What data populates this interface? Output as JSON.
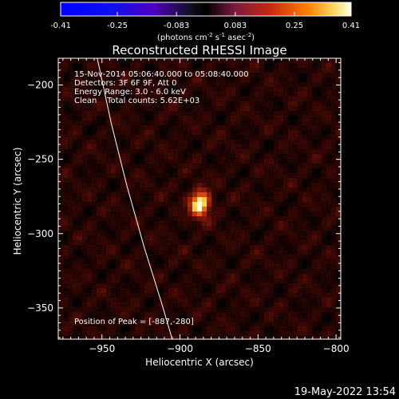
{
  "colorbar": {
    "ticks": [
      "-0.41",
      "-0.25",
      "-0.083",
      "0.083",
      "0.25",
      "0.41"
    ],
    "range": [
      -0.41,
      0.41
    ],
    "units": "(photons cm",
    "units_sup1": "-2",
    "units_mid": " s",
    "units_sup2": "-1",
    "units_end": " asec",
    "units_sup3": "-2",
    "units_close": ")"
  },
  "info": {
    "line1": "15-Nov-2014 05:06:40.000 to 05:08:40.000",
    "line2": "Detectors: 3F 6F 9F, Att 0",
    "line3": "Energy Range: 3.0 - 6.0 keV",
    "line4": "Clean    Total counts: 5.62E+03",
    "peak": "Position of Peak = [-887,-280]"
  },
  "timestamp": "19-May-2022 13:54",
  "colors": {
    "background": "#000000",
    "axes": "#ffffff",
    "limb": "#ffffff"
  },
  "chart_data": {
    "type": "heatmap",
    "title": "Reconstructed RHESSI Image",
    "xlabel": "Heliocentric X (arcsec)",
    "ylabel": "Heliocentric Y (arcsec)",
    "xlim": [
      -978,
      -797
    ],
    "ylim": [
      -371,
      -182
    ],
    "xticks": [
      -950,
      -900,
      -850,
      -800
    ],
    "xtick_labels": [
      "−950",
      "−900",
      "−850",
      "−800"
    ],
    "yticks": [
      -200,
      -250,
      -300,
      -350
    ],
    "ytick_labels": [
      "−200",
      "−250",
      "−300",
      "−350"
    ],
    "peak": {
      "x": -887,
      "y": -280,
      "value": 0.41
    },
    "colormap": "red-temperature",
    "limb_curve": [
      [
        -953,
        -182
      ],
      [
        -944,
        -226
      ],
      [
        -934,
        -268
      ],
      [
        -923,
        -309
      ],
      [
        -912,
        -346
      ],
      [
        -905,
        -371
      ]
    ],
    "grid": false
  }
}
